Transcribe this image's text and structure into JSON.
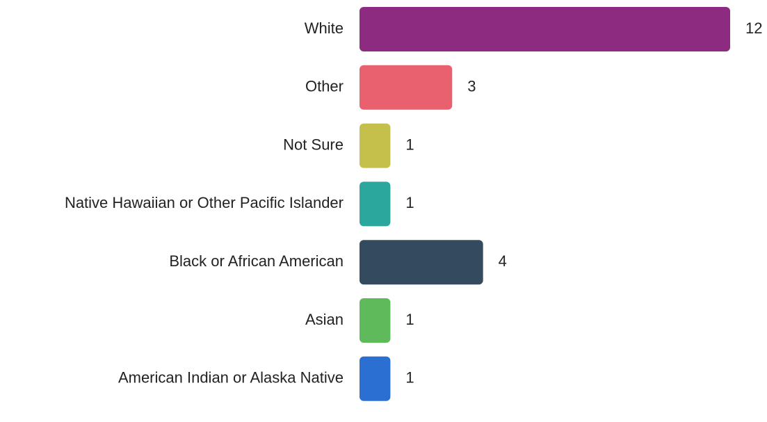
{
  "chart_data": {
    "type": "bar",
    "categories": [
      "White",
      "Other",
      "Not Sure",
      "Native Hawaiian or Other Pacific Islander",
      "Black or African American",
      "Asian",
      "American Indian or Alaska Native"
    ],
    "values": [
      12,
      3,
      1,
      1,
      4,
      1,
      1
    ],
    "colors": [
      "#8c2b80",
      "#e9606f",
      "#c5c04c",
      "#2ba79d",
      "#344a5f",
      "#5fba5c",
      "#2b6fd3"
    ]
  }
}
